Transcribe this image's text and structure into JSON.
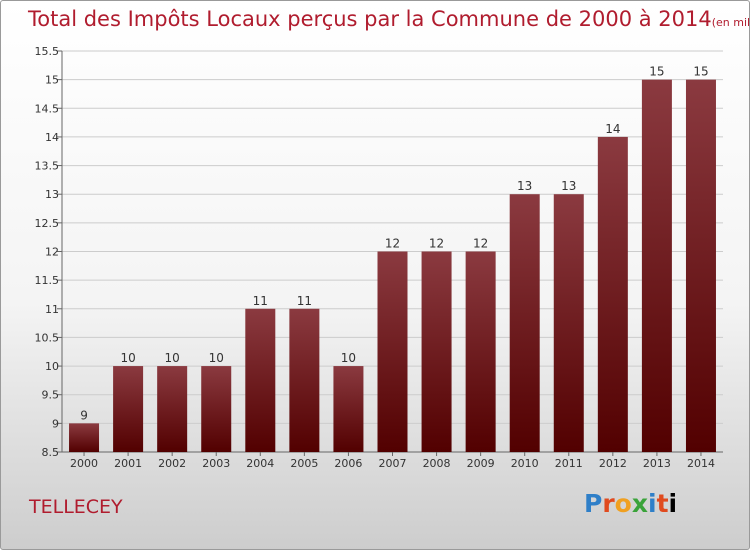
{
  "header": {
    "title": "Total des Impôts Locaux perçus par la Commune de 2000 à 2014",
    "unit": "(en milliers d'€)"
  },
  "commune": "TELLECEY",
  "logo": {
    "text": "Proxiti"
  },
  "colors": {
    "bar_top": "#8b3a40",
    "bar_bottom": "#520000",
    "title": "#b01c2e"
  },
  "chart_data": {
    "type": "bar",
    "title": "Total des Impôts Locaux perçus par la Commune de 2000 à 2014",
    "categories": [
      "2000",
      "2001",
      "2002",
      "2003",
      "2004",
      "2005",
      "2006",
      "2007",
      "2008",
      "2009",
      "2010",
      "2011",
      "2012",
      "2013",
      "2014"
    ],
    "values": [
      9,
      10,
      10,
      10,
      11,
      11,
      10,
      12,
      12,
      12,
      13,
      13,
      14,
      15,
      15
    ],
    "value_labels": [
      "9",
      "10",
      "10",
      "10",
      "11",
      "11",
      "10",
      "12",
      "12",
      "12",
      "13",
      "13",
      "14",
      "15",
      "15"
    ],
    "yticks": [
      8.5,
      9,
      9.5,
      10,
      10.5,
      11,
      11.5,
      12,
      12.5,
      13,
      13.5,
      14,
      14.5,
      15,
      15.5
    ],
    "ytick_labels": [
      "8.5",
      "9",
      "9.5",
      "10",
      "10.5",
      "11",
      "11.5",
      "12",
      "12.5",
      "13",
      "13.5",
      "14",
      "14.5",
      "15",
      "15.5"
    ],
    "ylim": [
      8.5,
      15.5
    ],
    "grid": true,
    "xlabel": "",
    "ylabel": ""
  }
}
